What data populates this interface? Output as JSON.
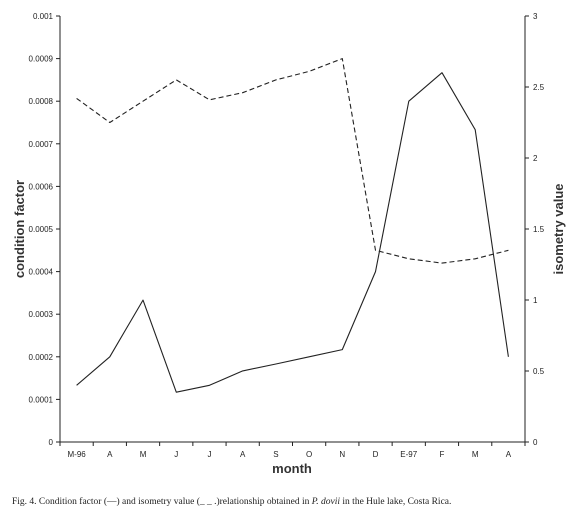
{
  "chart_data": {
    "type": "line",
    "categories": [
      "M-96",
      "A",
      "M",
      "J",
      "J",
      "A",
      "S",
      "O",
      "N",
      "D",
      "E-97",
      "F",
      "M",
      "A"
    ],
    "xlabel": "month",
    "ylabel_left": "condition factor",
    "ylabel_right": "isometry value",
    "ylim_left": [
      0,
      0.001
    ],
    "yticks_left": [
      "0",
      "0.0001",
      "0.0002",
      "0.0003",
      "0.0004",
      "0.0005",
      "0.0006",
      "0.0007",
      "0.0008",
      "0.0009",
      "0.001"
    ],
    "ylim_right": [
      0,
      3
    ],
    "yticks_right": [
      "0",
      "0.5",
      "1",
      "1.5",
      "2",
      "2.5",
      "3"
    ],
    "grid": false,
    "series": [
      {
        "axis": "left",
        "style": "solid",
        "values": [
          0.000133,
          0.0002,
          0.000333,
          0.000117,
          0.000133,
          0.000167,
          0.000183,
          0.0002,
          0.000217,
          0.0004,
          0.0008,
          0.000867,
          0.000733,
          0.0002
        ]
      },
      {
        "axis": "right",
        "style": "dashed",
        "values": [
          2.42,
          2.25,
          2.4,
          2.55,
          2.41,
          2.46,
          2.55,
          2.61,
          2.7,
          1.35,
          1.29,
          1.26,
          1.29,
          1.35
        ]
      }
    ]
  },
  "caption": {
    "prefix": "Fig. 4. Condition factor (—) and isometry value (_ _ .)relationship obtained in ",
    "species": "P. dovii",
    "suffix": " in the Hule lake, Costa Rica."
  }
}
